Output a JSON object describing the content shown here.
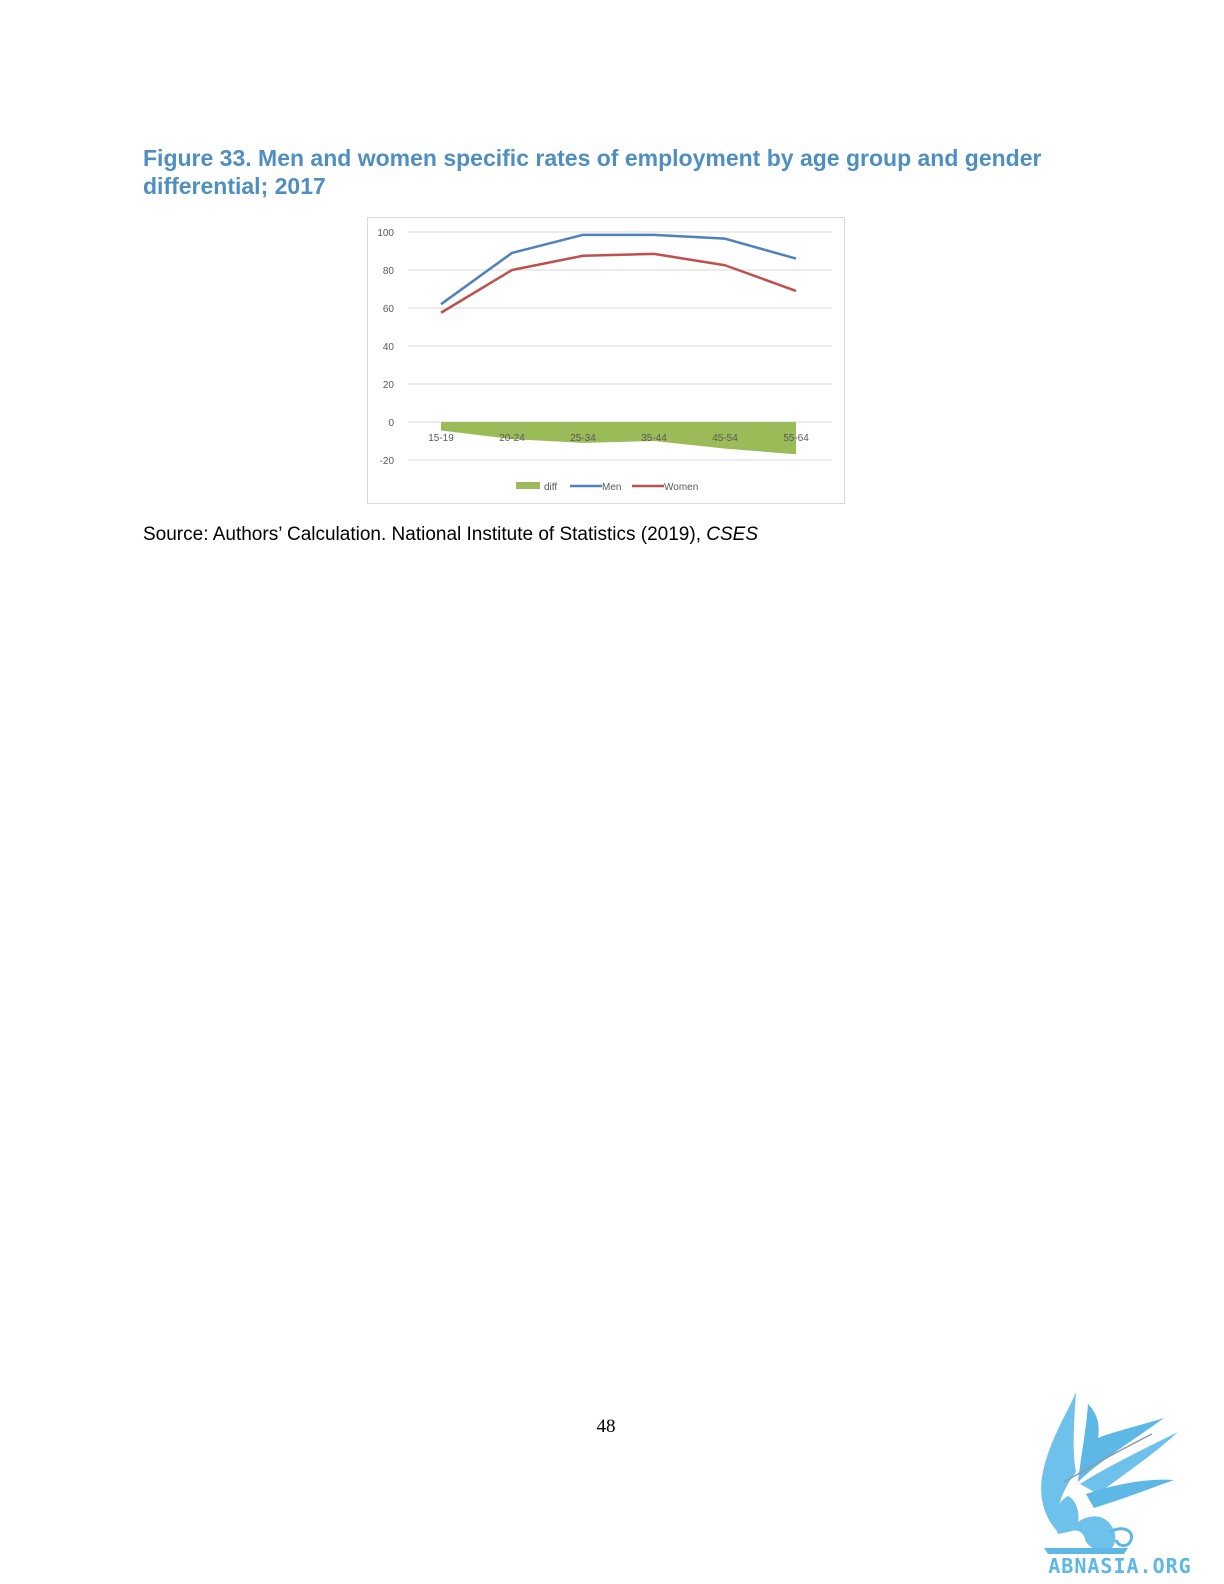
{
  "figure": {
    "title_prefix": "Figure 33.",
    "title_rest": " Men and women specific rates of employment by age group and gender differential; 2017"
  },
  "source": {
    "text": "Source: Authors’ Calculation.  National Institute of Statistics (2019), ",
    "italic": "CSES"
  },
  "page_number": "48",
  "logo": {
    "text": "ABNASIA.ORG",
    "color": "#5eb8e6"
  },
  "chart_data": {
    "type": "line",
    "categories": [
      "15-19",
      "20-24",
      "25-34",
      "35-44",
      "45-54",
      "55-64"
    ],
    "series": [
      {
        "name": "diff",
        "kind": "area",
        "color": "#9bbb59",
        "values": [
          -4.5,
          -9,
          -11,
          -10,
          -14,
          -17
        ]
      },
      {
        "name": "Men",
        "kind": "line",
        "color": "#4f81bd",
        "values": [
          62,
          89,
          98.5,
          98.5,
          96.5,
          86
        ]
      },
      {
        "name": "Women",
        "kind": "line",
        "color": "#c0504d",
        "values": [
          57.5,
          80,
          87.5,
          88.5,
          82.5,
          69
        ]
      }
    ],
    "y_ticks": [
      "100",
      "80",
      "60",
      "40",
      "20",
      "0",
      "-20"
    ],
    "ylim": [
      -20,
      100
    ],
    "grid": true,
    "legend_position": "bottom"
  }
}
